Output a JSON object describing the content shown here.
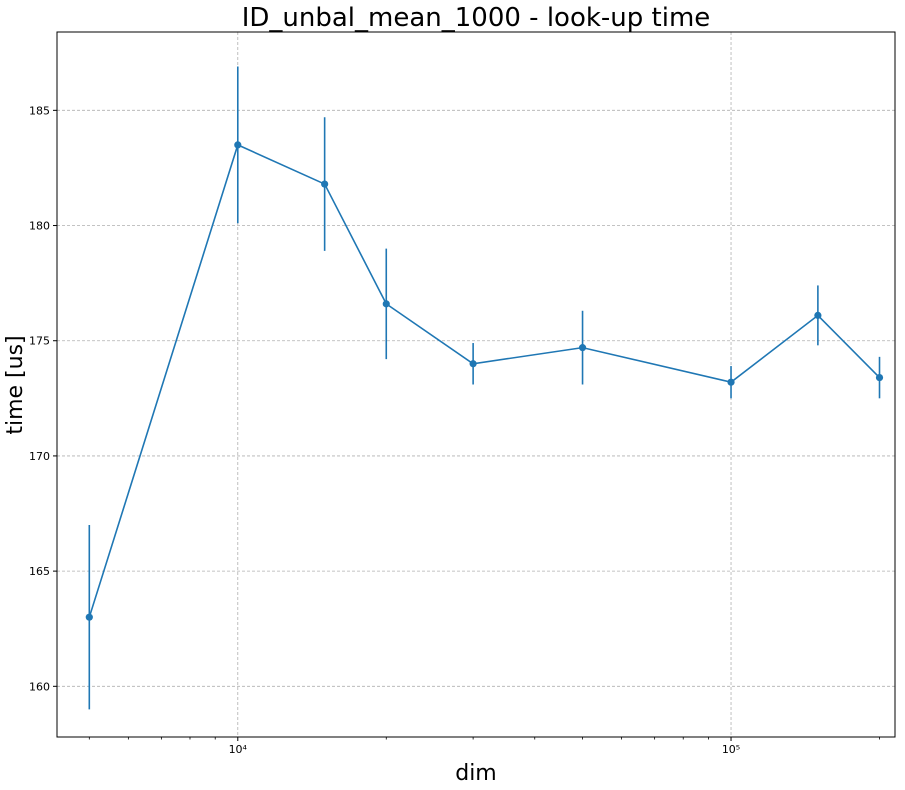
{
  "chart_data": {
    "type": "line",
    "title": "ID_unbal_mean_1000 - look-up time",
    "xlabel": "dim",
    "ylabel": "time [us]",
    "x_scale": "log",
    "xlim": [
      4300,
      215000
    ],
    "ylim": [
      157.8,
      188.4
    ],
    "grid": true,
    "y_ticks": [
      160,
      165,
      170,
      175,
      180,
      185
    ],
    "y_tick_labels": [
      "160",
      "165",
      "170",
      "175",
      "180",
      "185"
    ],
    "x_major_ticks": [
      10000,
      100000
    ],
    "x_tick_labels": [
      "10⁴",
      "10⁵"
    ],
    "series": [
      {
        "color": "#1f77b4",
        "x": [
          5000,
          10000,
          15000,
          20000,
          30000,
          50000,
          100000,
          150000,
          200000
        ],
        "y": [
          163.0,
          183.5,
          181.8,
          176.6,
          174.0,
          174.7,
          173.2,
          176.1,
          173.4
        ],
        "yerr": [
          4.0,
          3.4,
          2.9,
          2.4,
          0.9,
          1.6,
          0.7,
          1.3,
          0.9
        ]
      }
    ]
  }
}
